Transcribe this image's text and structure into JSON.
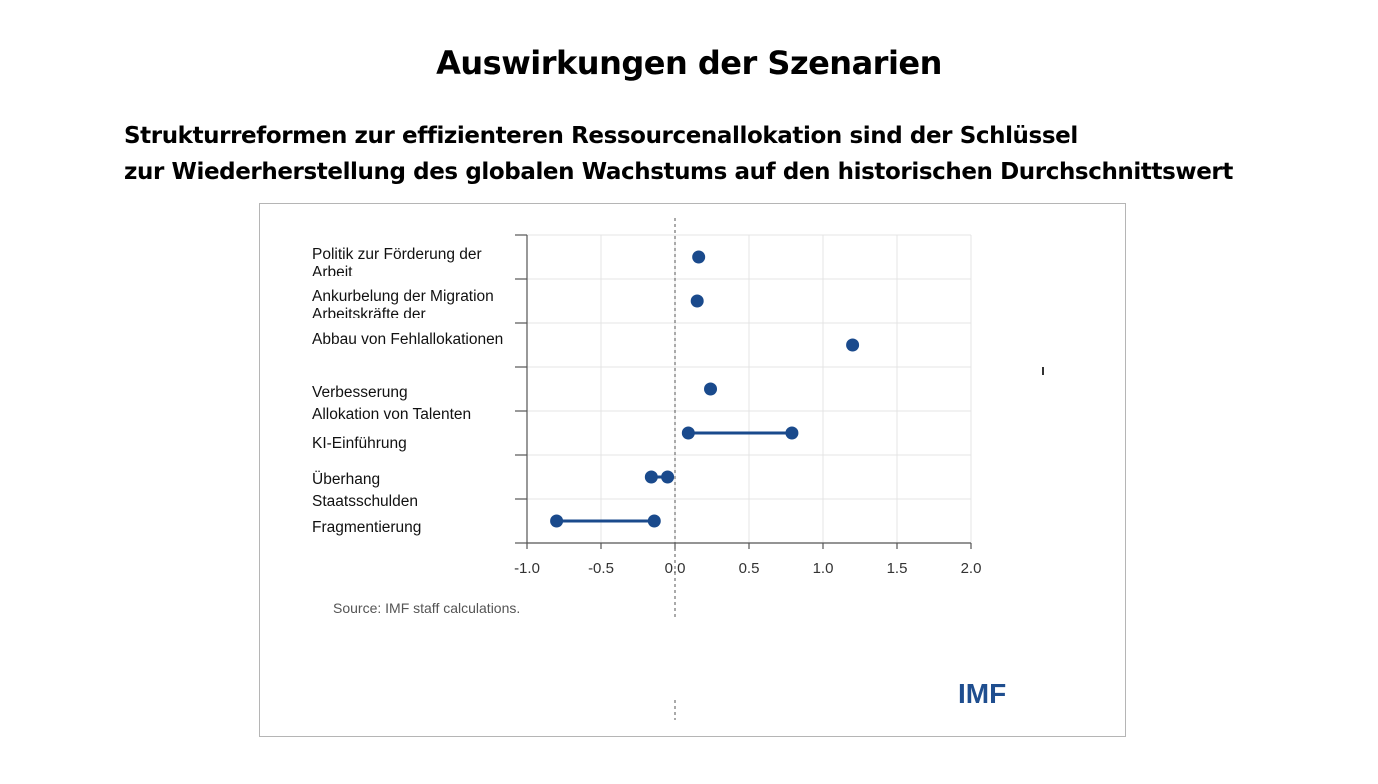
{
  "page": {
    "title": "Auswirkungen der Szenarien",
    "subtitle_line1": "Strukturreformen zur effizienteren Ressourcenallokation sind der Schlüssel",
    "subtitle_line2": "zur Wiederherstellung des globalen Wachstums auf den historischen Durchschnittswert"
  },
  "chart_data": {
    "type": "dot-range",
    "title": "",
    "xlabel": "",
    "ylabel": "",
    "xlim": [
      -1.0,
      2.0
    ],
    "xticks": [
      "-1.0",
      "-0.5",
      "0.0",
      "0.5",
      "1.0",
      "1.5",
      "2.0"
    ],
    "grid": true,
    "series_color": "#1a4a8c",
    "categories": [
      {
        "label_line1": "Politik zur Förderung der",
        "label_line2": "Arbeit",
        "values": [
          0.16
        ]
      },
      {
        "label_line1": "Ankurbelung der Migration",
        "label_line2": "Arbeitskräfte der",
        "values": [
          0.15
        ]
      },
      {
        "label_line1": "Abbau von Fehlallokationen",
        "label_line2": "",
        "values": [
          1.2
        ]
      },
      {
        "label_line1": "Verbesserung",
        "label_line2": "Allokation von Talenten",
        "values": [
          0.24
        ]
      },
      {
        "label_line1": "KI-Einführung",
        "label_line2": "",
        "values": [
          0.09,
          0.79
        ]
      },
      {
        "label_line1": "Überhang",
        "label_line2": "Staatsschulden",
        "values": [
          -0.16,
          -0.05
        ]
      },
      {
        "label_line1": "Fragmentierung",
        "label_line2": "",
        "values": [
          -0.8,
          -0.14
        ]
      }
    ],
    "source": "Source: IMF staff calculations.",
    "logo": "IMF"
  }
}
